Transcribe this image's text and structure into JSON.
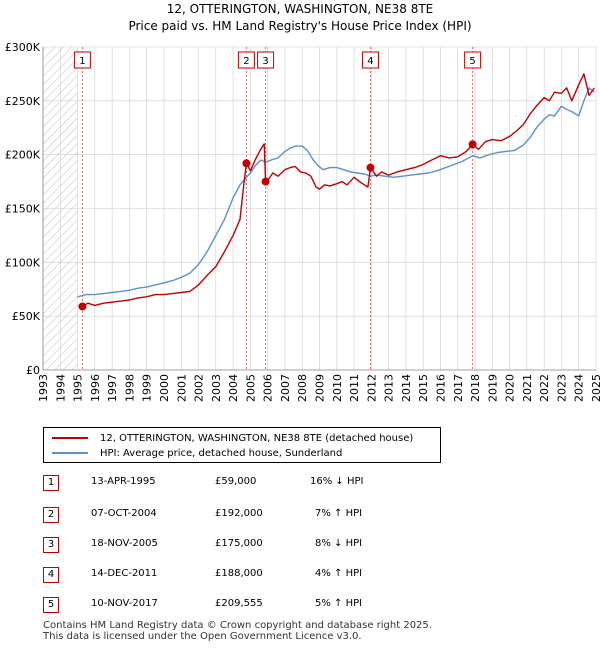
{
  "chart_data": {
    "type": "line",
    "title": "12, OTTERINGTON, WASHINGTON, NE38 8TE",
    "subtitle": "Price paid vs. HM Land Registry's House Price Index (HPI)",
    "xlim": [
      1993,
      2025
    ],
    "ylim": [
      0,
      300000
    ],
    "yticks": [
      {
        "value": 0,
        "label": "£0"
      },
      {
        "value": 50000,
        "label": "£50K"
      },
      {
        "value": 100000,
        "label": "£100K"
      },
      {
        "value": 150000,
        "label": "£150K"
      },
      {
        "value": 200000,
        "label": "£200K"
      },
      {
        "value": 250000,
        "label": "£250K"
      },
      {
        "value": 300000,
        "label": "£300K"
      }
    ],
    "xticks": [
      "1993",
      "1994",
      "1995",
      "1996",
      "1997",
      "1998",
      "1999",
      "2000",
      "2001",
      "2002",
      "2003",
      "2004",
      "2005",
      "2006",
      "2007",
      "2008",
      "2009",
      "2010",
      "2011",
      "2012",
      "2013",
      "2014",
      "2015",
      "2016",
      "2017",
      "2018",
      "2019",
      "2020",
      "2021",
      "2022",
      "2023",
      "2024",
      "2025"
    ],
    "hatch_before": 1995.0,
    "series": [
      {
        "name": "12, OTTERINGTON, WASHINGTON, NE38 8TE (detached house)",
        "color": "#c00000",
        "x": [
          1995.28,
          1995.6,
          1996,
          1996.5,
          1997,
          1997.5,
          1998,
          1998.5,
          1999,
          1999.5,
          2000,
          2000.5,
          2001,
          2001.5,
          2002,
          2002.5,
          2003,
          2003.5,
          2004,
          2004.4,
          2004.6,
          2004.77,
          2005.0,
          2005.3,
          2005.6,
          2005.8,
          2005.88,
          2006.0,
          2006.3,
          2006.6,
          2007,
          2007.3,
          2007.6,
          2007.9,
          2008.2,
          2008.5,
          2008.8,
          2009.0,
          2009.3,
          2009.6,
          2010,
          2010.3,
          2010.6,
          2011,
          2011.4,
          2011.8,
          2011.95,
          2012.3,
          2012.6,
          2013,
          2013.5,
          2014,
          2014.5,
          2015,
          2015.5,
          2016,
          2016.5,
          2017,
          2017.5,
          2017.86,
          2018.2,
          2018.6,
          2019,
          2019.5,
          2020,
          2020.4,
          2020.8,
          2021.2,
          2021.6,
          2022.0,
          2022.3,
          2022.6,
          2023.0,
          2023.3,
          2023.6,
          2024.0,
          2024.3,
          2024.6,
          2024.9
        ],
        "y": [
          59000,
          62000,
          60000,
          62000,
          63000,
          64000,
          65000,
          67000,
          68000,
          70000,
          70000,
          71000,
          72000,
          73000,
          79000,
          88000,
          96000,
          110000,
          125000,
          140000,
          170000,
          192000,
          185000,
          196000,
          205000,
          210000,
          175000,
          176000,
          183000,
          180000,
          186000,
          188000,
          189000,
          184000,
          183000,
          180000,
          170000,
          168000,
          172000,
          171000,
          173000,
          175000,
          172000,
          179000,
          174000,
          170000,
          188000,
          180000,
          184000,
          181000,
          184000,
          186000,
          188000,
          191000,
          195000,
          199000,
          197000,
          198000,
          203000,
          209555,
          205000,
          212000,
          214000,
          213000,
          217000,
          222000,
          228000,
          238000,
          246000,
          253000,
          250000,
          258000,
          257000,
          262000,
          250000,
          265000,
          275000,
          255000,
          262000
        ]
      },
      {
        "name": "HPI: Average price, detached house, Sunderland",
        "color": "#5b8fd0",
        "x": [
          1995.0,
          1995.5,
          1996,
          1996.5,
          1997,
          1997.5,
          1998,
          1998.5,
          1999,
          1999.5,
          2000,
          2000.5,
          2001,
          2001.5,
          2002,
          2002.5,
          2003,
          2003.5,
          2004,
          2004.4,
          2004.77,
          2005.0,
          2005.3,
          2005.6,
          2005.88,
          2006.2,
          2006.6,
          2007,
          2007.3,
          2007.6,
          2008.0,
          2008.3,
          2008.6,
          2008.9,
          2009.2,
          2009.6,
          2010,
          2010.4,
          2010.8,
          2011.2,
          2011.6,
          2011.95,
          2012.3,
          2012.8,
          2013.3,
          2013.8,
          2014.3,
          2014.8,
          2015.3,
          2015.8,
          2016.3,
          2016.8,
          2017.3,
          2017.86,
          2018.3,
          2018.8,
          2019.3,
          2019.8,
          2020.3,
          2020.8,
          2021.2,
          2021.6,
          2022.0,
          2022.3,
          2022.6,
          2023.0,
          2023.3,
          2023.6,
          2024.0,
          2024.3,
          2024.6,
          2024.9
        ],
        "y": [
          68000,
          70000,
          70000,
          71000,
          72000,
          73000,
          74000,
          76000,
          77000,
          79000,
          81000,
          83000,
          86000,
          90000,
          98000,
          110000,
          125000,
          140000,
          160000,
          172000,
          179000,
          183000,
          190000,
          195000,
          193000,
          195000,
          197000,
          203000,
          206000,
          208000,
          208000,
          204000,
          196000,
          190000,
          186000,
          188000,
          188000,
          186000,
          184000,
          183000,
          182000,
          180000,
          181000,
          180000,
          179000,
          180000,
          181000,
          182000,
          183000,
          185000,
          188000,
          191000,
          194000,
          199000,
          197000,
          200000,
          202000,
          203000,
          204000,
          209000,
          216000,
          226000,
          233000,
          237000,
          236000,
          245000,
          242000,
          240000,
          236000,
          250000,
          262000,
          258000
        ]
      }
    ],
    "sales": [
      {
        "n": "1",
        "x": 1995.28,
        "y": 59000
      },
      {
        "n": "2",
        "x": 2004.77,
        "y": 192000
      },
      {
        "n": "3",
        "x": 2005.88,
        "y": 175000
      },
      {
        "n": "4",
        "x": 2011.95,
        "y": 188000
      },
      {
        "n": "5",
        "x": 2017.86,
        "y": 209555
      }
    ]
  },
  "legend": {
    "property": "12, OTTERINGTON, WASHINGTON, NE38 8TE (detached house)",
    "hpi": "HPI: Average price, detached house, Sunderland"
  },
  "table": [
    {
      "n": "1",
      "date": "13-APR-1995",
      "price": "£59,000",
      "hpi": "16% ↓ HPI"
    },
    {
      "n": "2",
      "date": "07-OCT-2004",
      "price": "£192,000",
      "hpi": "7% ↑ HPI"
    },
    {
      "n": "3",
      "date": "18-NOV-2005",
      "price": "£175,000",
      "hpi": "8% ↓ HPI"
    },
    {
      "n": "4",
      "date": "14-DEC-2011",
      "price": "£188,000",
      "hpi": "4% ↑ HPI"
    },
    {
      "n": "5",
      "date": "10-NOV-2017",
      "price": "£209,555",
      "hpi": "5% ↑ HPI"
    }
  ],
  "footer": {
    "line1": "Contains HM Land Registry data © Crown copyright and database right 2025.",
    "line2": "This data is licensed under the Open Government Licence v3.0."
  },
  "colors": {
    "property": "#c00000",
    "hpi": "#5b8fd0",
    "grid": "#cccccc"
  }
}
